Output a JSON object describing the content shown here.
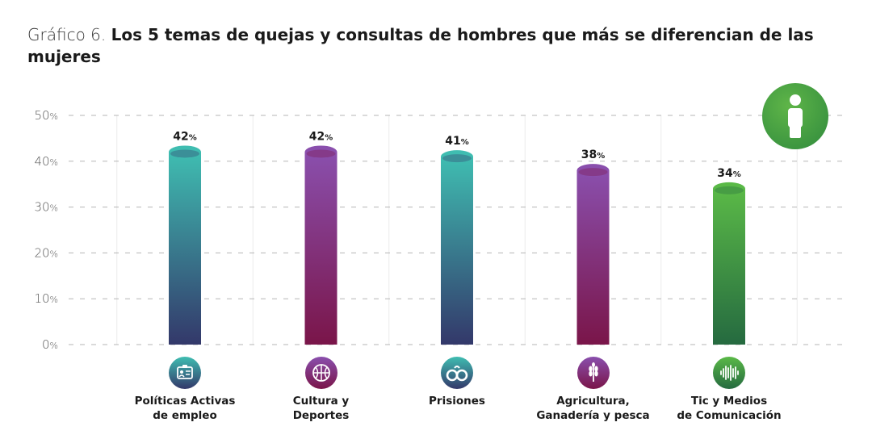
{
  "title": {
    "lead": "Gráfico 6.",
    "main": "Los 5 temas de quejas y consultas de hombres que más se diferencian de las mujeres"
  },
  "badge_icon": "person-icon",
  "chart_data": {
    "type": "bar",
    "categories": [
      [
        "Políticas Activas",
        "de empleo"
      ],
      [
        "Cultura y",
        "Deportes"
      ],
      [
        "Prisiones"
      ],
      [
        "Agricultura,",
        "Ganadería y pesca"
      ],
      [
        "Tic y Medios",
        "de Comunicación"
      ]
    ],
    "values": [
      42,
      42,
      41,
      38,
      34
    ],
    "value_unit": "%",
    "ylim": [
      0,
      50
    ],
    "yticks": [
      0,
      10,
      20,
      30,
      40,
      50
    ],
    "ytick_unit": "%",
    "grid": true,
    "category_icons": [
      "id-card-icon",
      "basketball-icon",
      "handcuffs-icon",
      "wheat-icon",
      "sound-wave-icon"
    ],
    "bar_colors": [
      [
        "#3fbdb1",
        "#33386a"
      ],
      [
        "#8a4fad",
        "#7a1549"
      ],
      [
        "#3fbdb1",
        "#33386a"
      ],
      [
        "#8a4fad",
        "#7a1549"
      ],
      [
        "#5ab947",
        "#256a40"
      ]
    ]
  }
}
